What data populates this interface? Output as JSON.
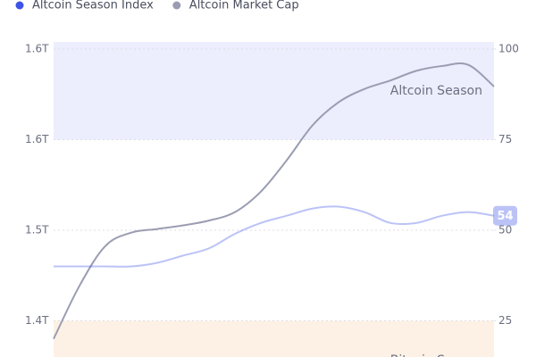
{
  "chart_data": {
    "type": "line",
    "legend": "top-left",
    "categories": [
      null,
      null,
      null,
      null,
      null,
      null,
      null,
      null,
      null,
      null,
      null,
      null,
      null,
      null,
      null,
      null,
      null,
      null
    ],
    "series": [
      {
        "name": "Altcoin Season Index",
        "color": "#3d52e6",
        "axis": "y2",
        "values": [
          40,
          40,
          40,
          40,
          41,
          43,
          45,
          49,
          52,
          54,
          56,
          56.5,
          55,
          52,
          52,
          54,
          55,
          54
        ]
      },
      {
        "name": "Altcoin Market Cap",
        "color": "#9a9db1",
        "values": [
          1.385,
          1.429,
          1.462,
          1.473,
          1.476,
          1.479,
          1.483,
          1.49,
          1.507,
          1.533,
          1.562,
          1.581,
          1.592,
          1.599,
          1.607,
          1.611,
          1.612,
          1.594
        ]
      }
    ],
    "ylim": [
      1.37,
      1.625
    ],
    "yticks": [
      {
        "value": 1.4,
        "label": "1.4T"
      },
      {
        "value": 1.475,
        "label": "1.5T"
      },
      {
        "value": 1.55,
        "label": "1.6T"
      },
      {
        "value": 1.625,
        "label": "1.6T"
      }
    ],
    "y2lim": [
      15,
      100
    ],
    "y2ticks": [
      25,
      50,
      75,
      100
    ],
    "grid": true,
    "bands": [
      {
        "label": "Altcoin Season",
        "from": 75,
        "to": 100,
        "color": "#eceefd"
      },
      {
        "label": "Bitcoin Season",
        "from": 15,
        "to": 25,
        "color": "#fdf1e5"
      }
    ]
  }
}
